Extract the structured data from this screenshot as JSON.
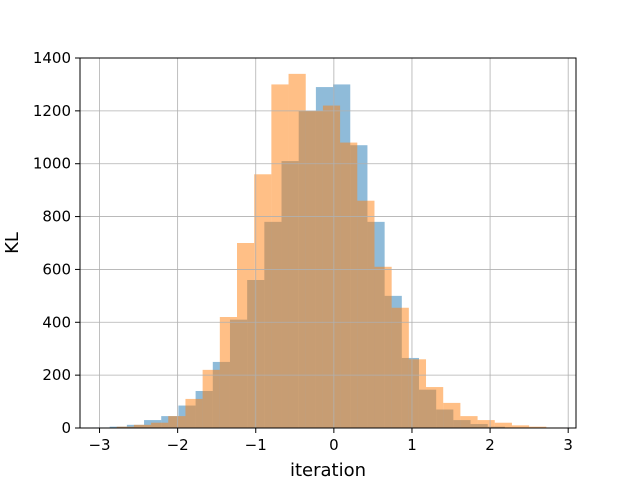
{
  "chart_data": {
    "type": "bar",
    "title": "",
    "xlabel": "iteration",
    "ylabel": "KL",
    "xlim": [
      -3.25,
      3.1
    ],
    "ylim": [
      0,
      1400
    ],
    "grid": true,
    "legend": "none",
    "xticks": [
      -3,
      -2,
      -1,
      0,
      1,
      2,
      3
    ],
    "xtick_labels": [
      "−3",
      "−2",
      "−1",
      "0",
      "1",
      "2",
      "3"
    ],
    "yticks": [
      0,
      200,
      400,
      600,
      800,
      1000,
      1200,
      1400
    ],
    "ytick_labels": [
      "0",
      "200",
      "400",
      "600",
      "800",
      "1000",
      "1200",
      "1400"
    ],
    "series": [
      {
        "color": "#1f77b4",
        "alpha": 0.5,
        "bins": [
          [
            -3.09,
            -2.87,
            2
          ],
          [
            -2.87,
            -2.65,
            5
          ],
          [
            -2.65,
            -2.43,
            12
          ],
          [
            -2.43,
            -2.21,
            30
          ],
          [
            -2.21,
            -1.99,
            45
          ],
          [
            -1.99,
            -1.77,
            85
          ],
          [
            -1.77,
            -1.55,
            140
          ],
          [
            -1.55,
            -1.33,
            250
          ],
          [
            -1.33,
            -1.11,
            410
          ],
          [
            -1.11,
            -0.89,
            560
          ],
          [
            -0.89,
            -0.67,
            780
          ],
          [
            -0.67,
            -0.45,
            1010
          ],
          [
            -0.45,
            -0.23,
            1200
          ],
          [
            -0.23,
            -0.01,
            1290
          ],
          [
            -0.01,
            0.21,
            1300
          ],
          [
            0.21,
            0.43,
            1070
          ],
          [
            0.43,
            0.65,
            780
          ],
          [
            0.65,
            0.87,
            500
          ],
          [
            0.87,
            1.09,
            265
          ],
          [
            1.09,
            1.31,
            145
          ],
          [
            1.31,
            1.53,
            70
          ],
          [
            1.53,
            1.75,
            30
          ],
          [
            1.75,
            1.97,
            15
          ],
          [
            1.97,
            2.19,
            5
          ]
        ]
      },
      {
        "color": "#ff7f0e",
        "alpha": 0.5,
        "bins": [
          [
            -2.78,
            -2.56,
            5
          ],
          [
            -2.56,
            -2.34,
            12
          ],
          [
            -2.34,
            -2.12,
            20
          ],
          [
            -2.12,
            -1.9,
            45
          ],
          [
            -1.9,
            -1.68,
            110
          ],
          [
            -1.68,
            -1.46,
            220
          ],
          [
            -1.46,
            -1.24,
            420
          ],
          [
            -1.24,
            -1.02,
            700
          ],
          [
            -1.02,
            -0.8,
            960
          ],
          [
            -0.8,
            -0.58,
            1300
          ],
          [
            -0.58,
            -0.36,
            1340
          ],
          [
            -0.36,
            -0.14,
            1200
          ],
          [
            -0.14,
            0.08,
            1220
          ],
          [
            0.08,
            0.3,
            1080
          ],
          [
            0.3,
            0.52,
            860
          ],
          [
            0.52,
            0.74,
            610
          ],
          [
            0.74,
            0.96,
            455
          ],
          [
            0.96,
            1.18,
            260
          ],
          [
            1.18,
            1.4,
            155
          ],
          [
            1.4,
            1.62,
            95
          ],
          [
            1.62,
            1.84,
            45
          ],
          [
            1.84,
            2.06,
            30
          ],
          [
            2.06,
            2.28,
            20
          ],
          [
            2.28,
            2.5,
            10
          ],
          [
            2.5,
            2.72,
            5
          ],
          [
            2.72,
            2.94,
            2
          ]
        ]
      }
    ]
  }
}
